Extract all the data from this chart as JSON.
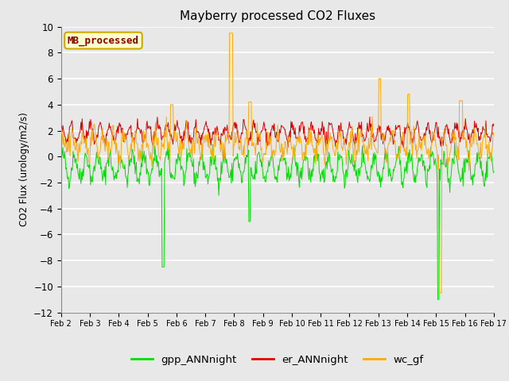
{
  "title": "Mayberry processed CO2 Fluxes",
  "ylabel": "CO2 Flux (urology/m2/s)",
  "ylim": [
    -12,
    10
  ],
  "yticks": [
    -12,
    -10,
    -8,
    -6,
    -4,
    -2,
    0,
    2,
    4,
    6,
    8,
    10
  ],
  "xtick_labels": [
    "Feb 2",
    "Feb 3",
    "Feb 4",
    "Feb 5",
    "Feb 6",
    "Feb 7",
    "Feb 8",
    "Feb 9",
    "Feb 10",
    "Feb 11",
    "Feb 12",
    "Feb 13",
    "Feb 14",
    "Feb 15",
    "Feb 16",
    "Feb 17"
  ],
  "color_gpp": "#00dd00",
  "color_er": "#dd0000",
  "color_wc": "#ffaa00",
  "legend_label": "MB_processed",
  "legend_text_color": "#8b0000",
  "legend_box_facecolor": "#ffffcc",
  "legend_box_edgecolor": "#ccaa00",
  "bg_color": "#e8e8e8",
  "plot_bg_color": "#e8e8e8",
  "grid_color": "#ffffff",
  "n_points": 720,
  "seed": 42
}
